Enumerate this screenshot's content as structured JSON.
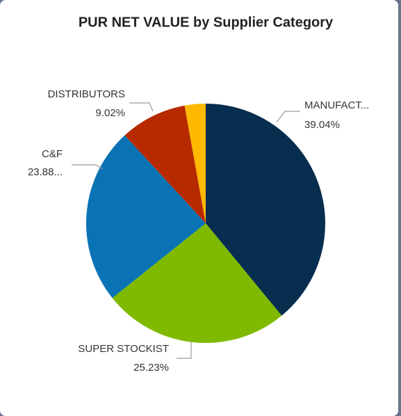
{
  "chart_data": {
    "type": "pie",
    "title": "PUR NET VALUE by Supplier Category",
    "categories": [
      "MANUFACT...",
      "SUPER STOCKIST",
      "C&F",
      "DISTRIBUTORS",
      null
    ],
    "values": [
      39.04,
      25.23,
      23.88,
      9.02,
      2.83
    ],
    "value_labels": [
      "39.04%",
      "25.23%",
      "23.88...",
      "9.02%",
      null
    ],
    "colors": [
      "#072d4f",
      "#7fba00",
      "#0a73b4",
      "#b72a00",
      "#ffb900"
    ]
  }
}
